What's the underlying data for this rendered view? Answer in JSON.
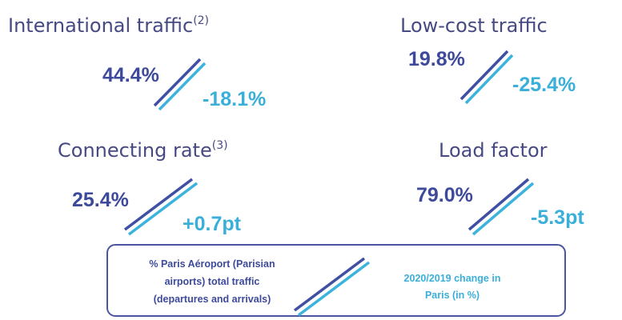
{
  "metrics": [
    {
      "title": "International traffic",
      "note": "(2)",
      "share": "44.4%",
      "change": "-18.1%"
    },
    {
      "title": "Low-cost traffic",
      "share": "19.8%",
      "change": "-25.4%"
    },
    {
      "title": "Connecting rate",
      "note": "(3)",
      "share": "25.4%",
      "change": "+0.7pt"
    },
    {
      "title": "Load factor",
      "share": "79.0%",
      "change": "-5.3pt"
    }
  ],
  "legend": {
    "share_lines": [
      "% Paris Aéroport (Parisian",
      "airports) total traffic",
      "(departures and arrivals)"
    ],
    "change_lines": [
      "2020/2019 change in",
      "Paris (in %)"
    ]
  }
}
